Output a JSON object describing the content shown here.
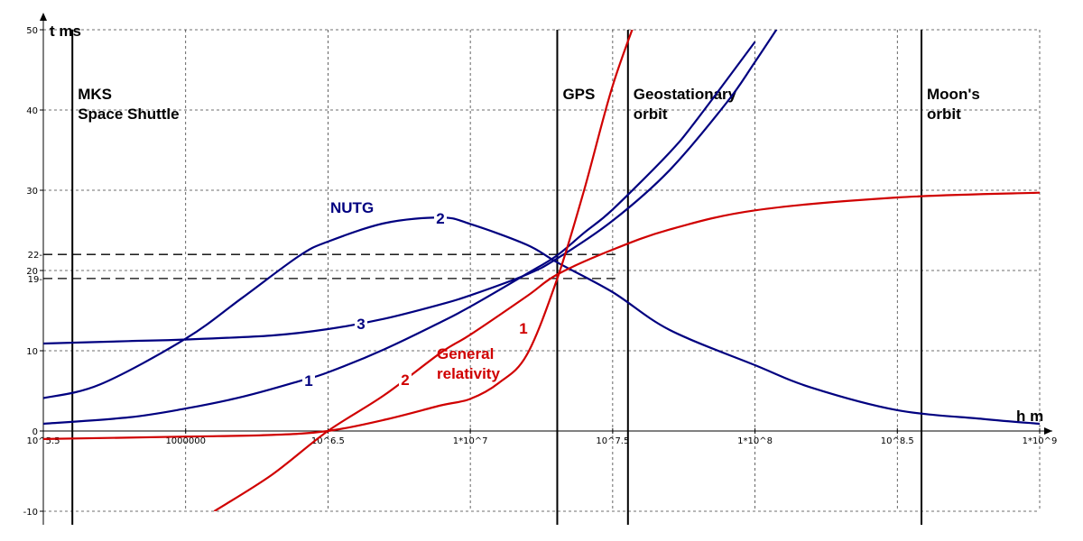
{
  "chart_data": {
    "type": "line",
    "title": "",
    "xlabel": "h m",
    "ylabel": "t ms",
    "x_scale": "log10",
    "xlim": [
      "10^5.5",
      "10^9"
    ],
    "ylim": [
      -10,
      50
    ],
    "grid": true,
    "x_ticks": [
      {
        "x": 316228,
        "label": "10^5.5"
      },
      {
        "x": 1000000,
        "label": "1000000"
      },
      {
        "x": 3162278,
        "label": "10^6.5"
      },
      {
        "x": 10000000,
        "label": "1*10^7"
      },
      {
        "x": 31622777,
        "label": "10^7.5"
      },
      {
        "x": 100000000,
        "label": "1*10^8"
      },
      {
        "x": 316227766,
        "label": "10^8.5"
      },
      {
        "x": 1000000000,
        "label": "1*10^9"
      }
    ],
    "y_ticks": [
      -10,
      0,
      10,
      20,
      30,
      40,
      50
    ],
    "y_marks": [
      {
        "y": 22,
        "label": "22-"
      },
      {
        "y": 19,
        "label": "19-"
      }
    ],
    "vertical_markers": [
      {
        "x": 400000,
        "label": [
          "MKS",
          "Space Shuttle"
        ]
      },
      {
        "x": 20200000,
        "label": [
          "GPS"
        ]
      },
      {
        "x": 35786000,
        "label": [
          "Geostationary",
          "orbit"
        ]
      },
      {
        "x": 384400000,
        "label": [
          "Moon's",
          "orbit"
        ]
      }
    ],
    "series": [
      {
        "name": "NUTG 1",
        "color": "#000080",
        "label": "1",
        "points": [
          [
            316228,
            0.9
          ],
          [
            630000,
            1.7
          ],
          [
            1000000,
            2.8
          ],
          [
            1600000,
            4.3
          ],
          [
            2500000,
            6.2
          ],
          [
            3160000,
            7.3
          ],
          [
            5000000,
            10.2
          ],
          [
            7900000,
            13.6
          ],
          [
            10000000,
            15.5
          ],
          [
            15800000,
            19.6
          ],
          [
            20200000,
            21.9
          ],
          [
            25100000,
            24.7
          ],
          [
            31600000,
            27.6
          ],
          [
            50100000,
            34.7
          ],
          [
            63100000,
            39.0
          ],
          [
            100000000,
            48.5
          ]
        ]
      },
      {
        "name": "NUTG 2",
        "color": "#000080",
        "label": "2",
        "points": [
          [
            316228,
            4.1
          ],
          [
            500000,
            5.8
          ],
          [
            1000000,
            11.5
          ],
          [
            1580000,
            16.6
          ],
          [
            2500000,
            21.8
          ],
          [
            3160000,
            23.6
          ],
          [
            5000000,
            25.9
          ],
          [
            7900000,
            26.6
          ],
          [
            10000000,
            25.8
          ],
          [
            15800000,
            23.2
          ],
          [
            20200000,
            21.0
          ],
          [
            31600000,
            17.3
          ],
          [
            50100000,
            12.6
          ],
          [
            100000000,
            8.2
          ],
          [
            158000000,
            5.4
          ],
          [
            316228000,
            2.6
          ],
          [
            630000000,
            1.5
          ],
          [
            1000000000,
            0.9
          ]
        ]
      },
      {
        "name": "NUTG 3",
        "color": "#000080",
        "label": "3",
        "points": [
          [
            316228,
            10.9
          ],
          [
            630000,
            11.2
          ],
          [
            1000000,
            11.4
          ],
          [
            2000000,
            11.9
          ],
          [
            3160000,
            12.7
          ],
          [
            5000000,
            14.0
          ],
          [
            7900000,
            15.8
          ],
          [
            10000000,
            16.9
          ],
          [
            15800000,
            19.5
          ],
          [
            20200000,
            21.5
          ],
          [
            31600000,
            26.2
          ],
          [
            50100000,
            32.5
          ],
          [
            79400000,
            40.9
          ],
          [
            100000000,
            46.0
          ],
          [
            141000000,
            54.0
          ]
        ]
      },
      {
        "name": "General relativity 1",
        "color": "#d00000",
        "label": "1",
        "points": [
          [
            316228,
            -1.0
          ],
          [
            1000000,
            -0.7
          ],
          [
            2000000,
            -0.5
          ],
          [
            3160000,
            0.0
          ],
          [
            5000000,
            1.4
          ],
          [
            7900000,
            3.2
          ],
          [
            10000000,
            4.0
          ],
          [
            12600000,
            6.0
          ],
          [
            15800000,
            9.5
          ],
          [
            20200000,
            19.0
          ],
          [
            25100000,
            30.0
          ],
          [
            31600000,
            43.0
          ],
          [
            39800000,
            53.0
          ]
        ]
      },
      {
        "name": "General relativity 2",
        "color": "#d00000",
        "label": "2",
        "points": [
          [
            1260000,
            -10.0
          ],
          [
            2000000,
            -5.5
          ],
          [
            3160000,
            0.0
          ],
          [
            5000000,
            4.5
          ],
          [
            7900000,
            9.8
          ],
          [
            10000000,
            12.0
          ],
          [
            15800000,
            16.8
          ],
          [
            20200000,
            19.5
          ],
          [
            31600000,
            22.6
          ],
          [
            50100000,
            25.1
          ],
          [
            100000000,
            27.5
          ],
          [
            316228000,
            29.1
          ],
          [
            1000000000,
            29.7
          ]
        ]
      }
    ],
    "annotations": [
      "NUTG",
      "General",
      "relativity"
    ]
  }
}
